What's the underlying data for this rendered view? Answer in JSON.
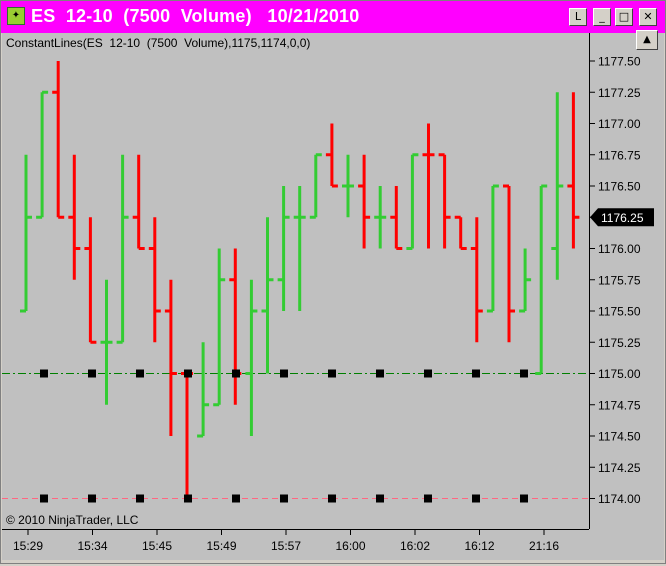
{
  "window": {
    "title": "ES  12-10  (7500  Volume)   10/21/2010",
    "buttons": {
      "l_label": "L",
      "minimize_label": "_",
      "maximize_label": "□",
      "close_label": "✕"
    },
    "scroll_up_label": "▲"
  },
  "indicator_label": "ConstantLines(ES  12-10  (7500  Volume),1175,1174,0,0)",
  "copyright": "© 2010 NinjaTrader, LLC",
  "colors": {
    "up_bar": "#33cc33",
    "down_bar": "#ff0000",
    "line1": "#008000",
    "line2": "#ff6680",
    "marker": "#000000",
    "title_bg": "#ff00ff"
  },
  "chart_data": {
    "type": "ohlc",
    "price_ticks": [
      "1177.50",
      "1177.25",
      "1177.00",
      "1176.75",
      "1176.50",
      "1176.25",
      "1176.00",
      "1175.75",
      "1175.50",
      "1175.25",
      "1175.00",
      "1174.75",
      "1174.50",
      "1174.25",
      "1174.00"
    ],
    "current_price_label": "1176.25",
    "current_price": 1176.25,
    "time_labels": [
      "15:29",
      "15:34",
      "15:45",
      "15:49",
      "15:57",
      "16:00",
      "16:02",
      "16:12",
      "21:16"
    ],
    "bars": [
      {
        "dir": "up",
        "open": 1175.5,
        "high": 1176.75,
        "low": 1175.5,
        "close": 1176.25
      },
      {
        "dir": "up",
        "open": 1176.25,
        "high": 1177.25,
        "low": 1176.25,
        "close": 1177.25
      },
      {
        "dir": "down",
        "open": 1177.25,
        "high": 1177.5,
        "low": 1176.25,
        "close": 1176.25
      },
      {
        "dir": "down",
        "open": 1176.25,
        "high": 1176.75,
        "low": 1175.75,
        "close": 1176.0
      },
      {
        "dir": "down",
        "open": 1176.0,
        "high": 1176.25,
        "low": 1175.25,
        "close": 1175.25
      },
      {
        "dir": "up",
        "open": 1175.25,
        "high": 1175.75,
        "low": 1174.75,
        "close": 1175.25
      },
      {
        "dir": "up",
        "open": 1175.25,
        "high": 1176.75,
        "low": 1175.25,
        "close": 1176.25
      },
      {
        "dir": "down",
        "open": 1176.25,
        "high": 1176.75,
        "low": 1176.0,
        "close": 1176.0
      },
      {
        "dir": "down",
        "open": 1176.0,
        "high": 1176.25,
        "low": 1175.25,
        "close": 1175.5
      },
      {
        "dir": "down",
        "open": 1175.5,
        "high": 1175.75,
        "low": 1174.5,
        "close": 1175.0
      },
      {
        "dir": "down",
        "open": 1175.0,
        "high": 1175.0,
        "low": 1174.0,
        "close": 1175.0
      },
      {
        "dir": "up",
        "open": 1174.5,
        "high": 1175.25,
        "low": 1174.5,
        "close": 1174.75
      },
      {
        "dir": "up",
        "open": 1174.75,
        "high": 1176.0,
        "low": 1174.75,
        "close": 1175.75
      },
      {
        "dir": "down",
        "open": 1175.75,
        "high": 1176.0,
        "low": 1174.75,
        "close": 1175.0
      },
      {
        "dir": "up",
        "open": 1175.0,
        "high": 1175.75,
        "low": 1174.5,
        "close": 1175.5
      },
      {
        "dir": "up",
        "open": 1175.5,
        "high": 1176.25,
        "low": 1175.0,
        "close": 1175.75
      },
      {
        "dir": "up",
        "open": 1175.75,
        "high": 1176.5,
        "low": 1175.5,
        "close": 1176.25
      },
      {
        "dir": "up",
        "open": 1176.25,
        "high": 1176.5,
        "low": 1175.5,
        "close": 1176.25
      },
      {
        "dir": "up",
        "open": 1176.25,
        "high": 1176.75,
        "low": 1176.25,
        "close": 1176.75
      },
      {
        "dir": "down",
        "open": 1176.75,
        "high": 1177.0,
        "low": 1176.5,
        "close": 1176.5
      },
      {
        "dir": "up",
        "open": 1176.5,
        "high": 1176.75,
        "low": 1176.25,
        "close": 1176.5
      },
      {
        "dir": "down",
        "open": 1176.5,
        "high": 1176.75,
        "low": 1176.0,
        "close": 1176.25
      },
      {
        "dir": "up",
        "open": 1176.25,
        "high": 1176.5,
        "low": 1176.0,
        "close": 1176.25
      },
      {
        "dir": "down",
        "open": 1176.25,
        "high": 1176.5,
        "low": 1176.0,
        "close": 1176.0
      },
      {
        "dir": "up",
        "open": 1176.0,
        "high": 1176.75,
        "low": 1176.0,
        "close": 1176.75
      },
      {
        "dir": "down",
        "open": 1176.75,
        "high": 1177.0,
        "low": 1176.0,
        "close": 1176.75
      },
      {
        "dir": "down",
        "open": 1176.75,
        "high": 1176.75,
        "low": 1176.0,
        "close": 1176.25
      },
      {
        "dir": "down",
        "open": 1176.25,
        "high": 1176.25,
        "low": 1176.0,
        "close": 1176.0
      },
      {
        "dir": "down",
        "open": 1176.0,
        "high": 1176.25,
        "low": 1175.25,
        "close": 1175.5
      },
      {
        "dir": "up",
        "open": 1175.5,
        "high": 1176.5,
        "low": 1175.5,
        "close": 1176.5
      },
      {
        "dir": "down",
        "open": 1176.5,
        "high": 1176.5,
        "low": 1175.25,
        "close": 1175.5
      },
      {
        "dir": "up",
        "open": 1175.5,
        "high": 1176.0,
        "low": 1175.5,
        "close": 1175.75
      },
      {
        "dir": "up",
        "open": 1175.0,
        "high": 1176.5,
        "low": 1175.0,
        "close": 1176.5
      },
      {
        "dir": "up",
        "open": 1176.0,
        "high": 1177.25,
        "low": 1175.75,
        "close": 1176.5
      },
      {
        "dir": "down",
        "open": 1176.5,
        "high": 1177.25,
        "low": 1176.0,
        "close": 1176.25
      }
    ],
    "constant_lines": [
      {
        "value": 1175.0,
        "style": "dash-dot",
        "color": "#008000"
      },
      {
        "value": 1174.0,
        "style": "dashed",
        "color": "#ff6680"
      }
    ]
  }
}
